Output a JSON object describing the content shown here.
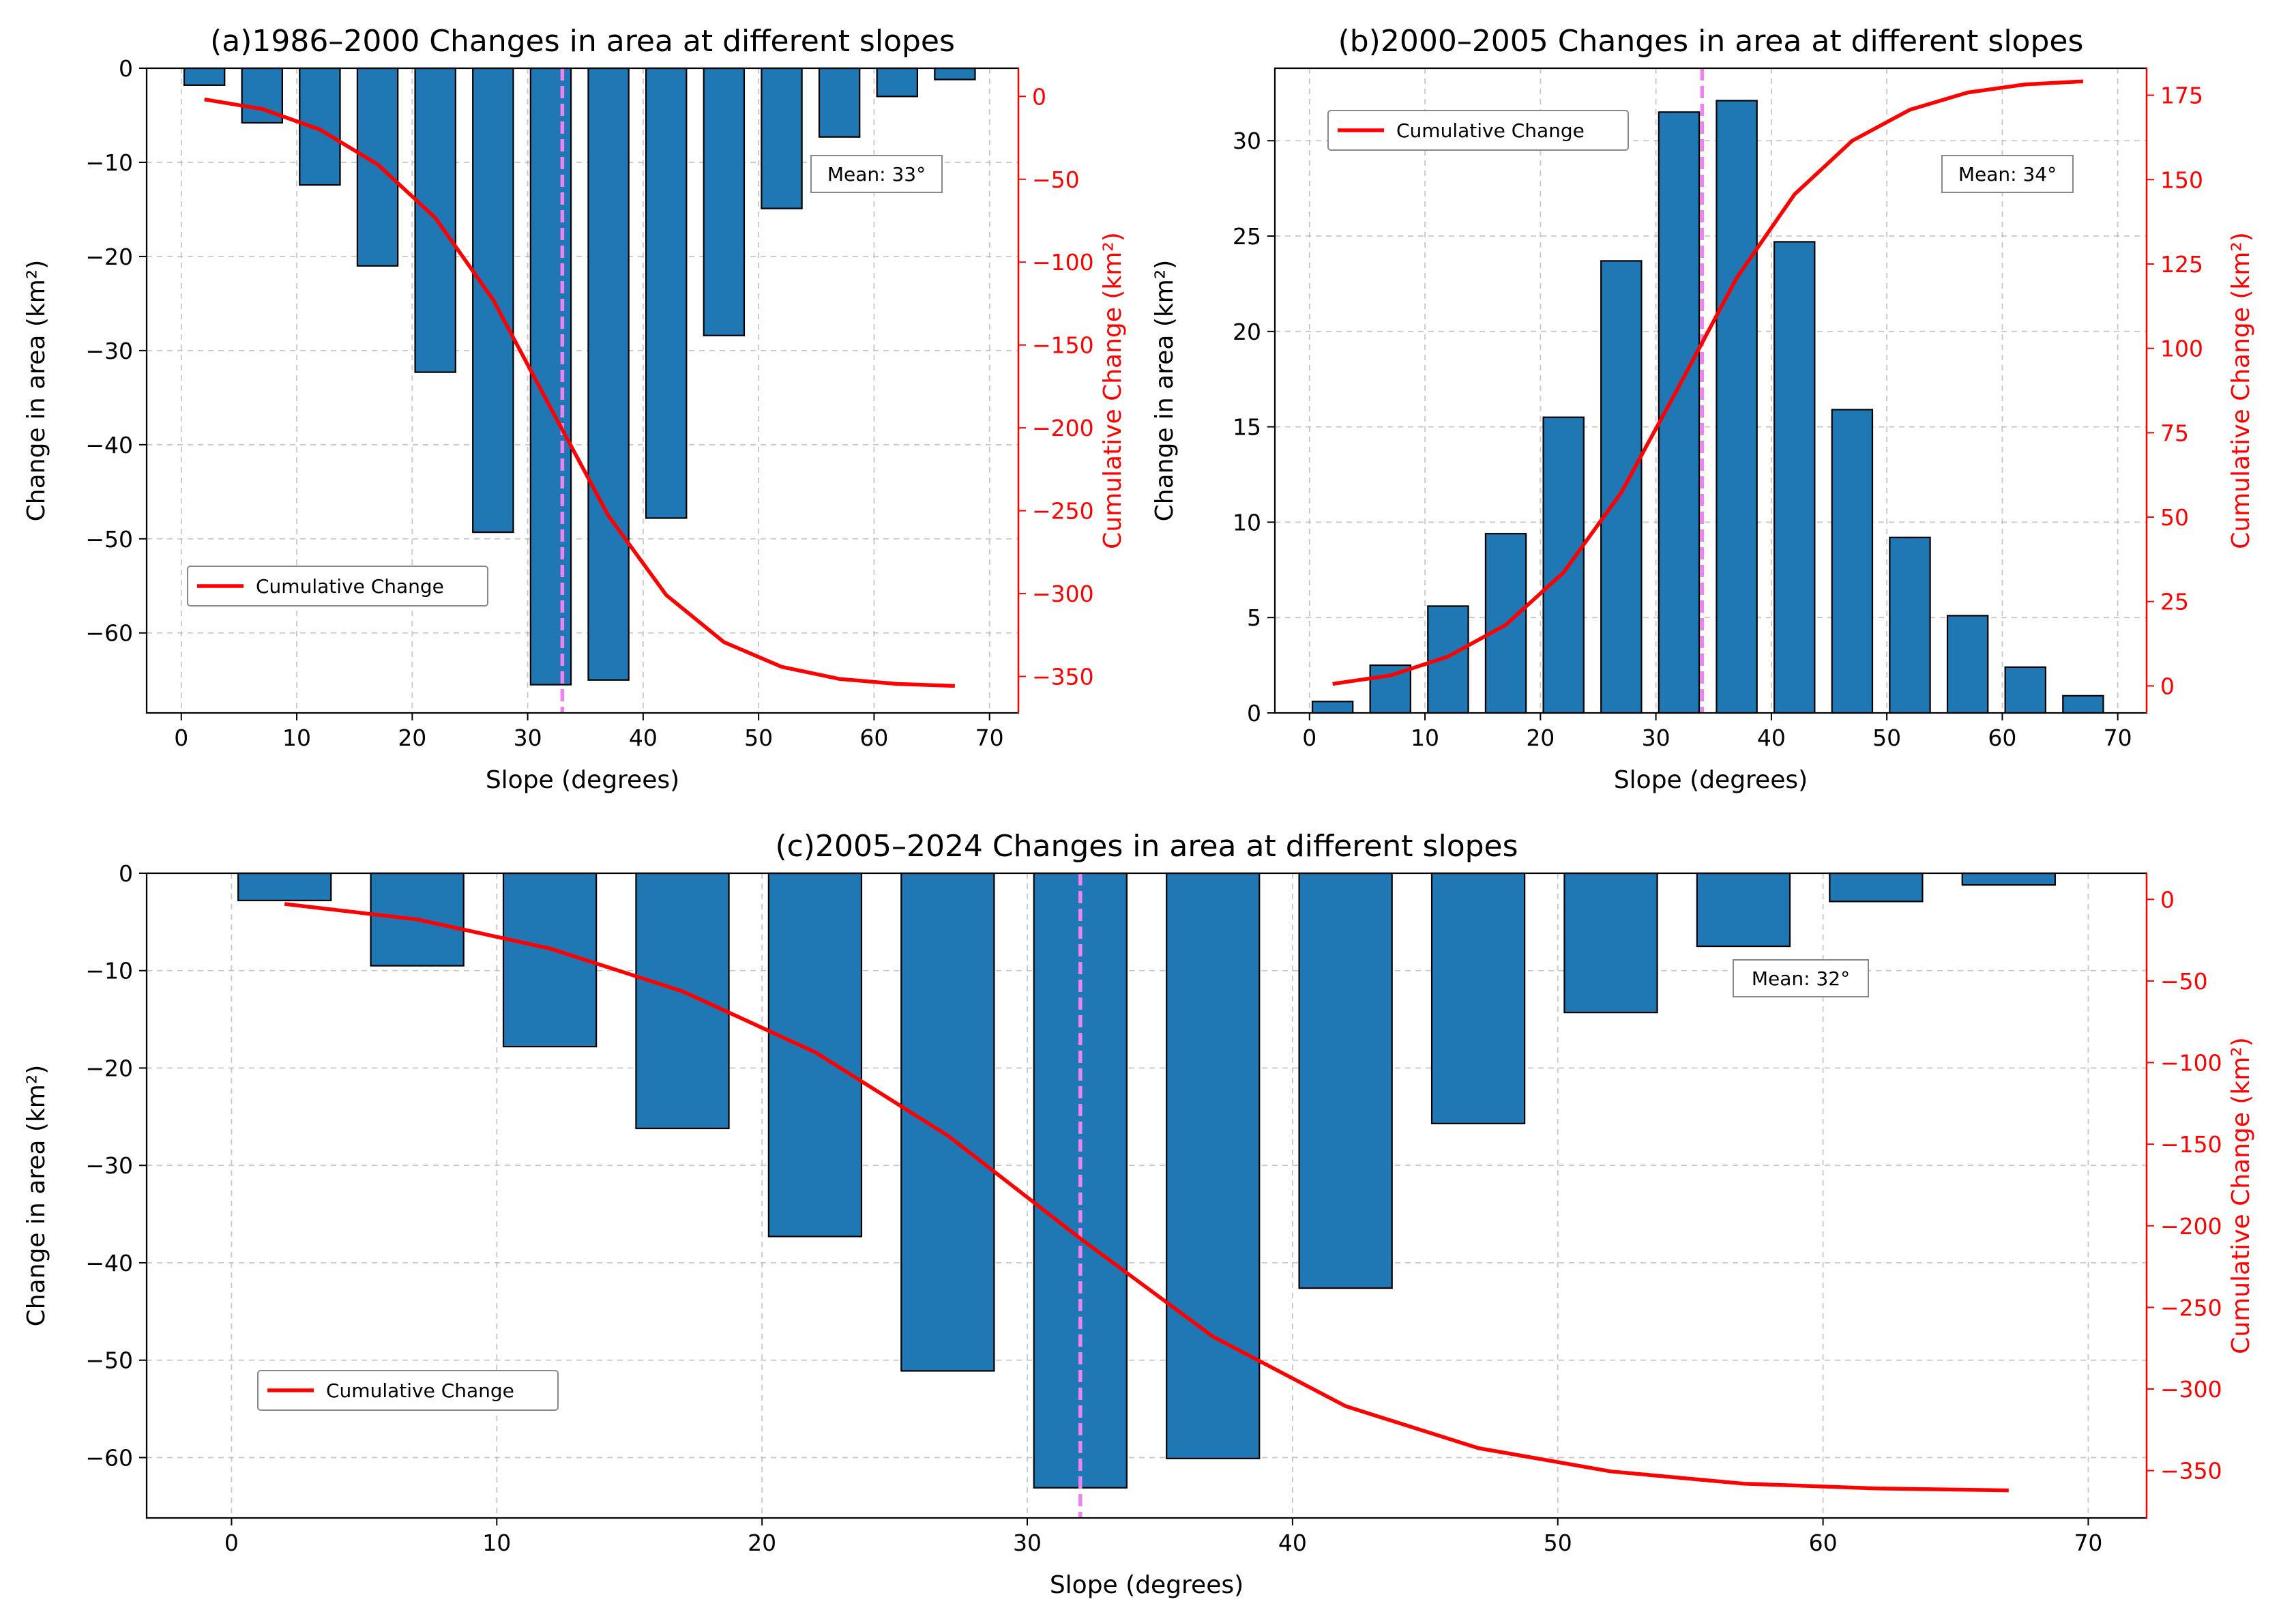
{
  "chart_data": [
    {
      "id": "a",
      "type": "bar",
      "title": "(a)1986–2000 Changes in area at different slopes",
      "xlabel": "Slope (degrees)",
      "ylabel": "Change in area (km²)",
      "y2label": "Cumulative Change (km²)",
      "xlim": [
        -3,
        72.5
      ],
      "ylim": [
        -68.5,
        0
      ],
      "y2lim": [
        -372,
        17
      ],
      "xticks": [
        0,
        10,
        20,
        30,
        40,
        50,
        60,
        70
      ],
      "yticks": [
        0,
        -10,
        -20,
        -30,
        -40,
        -50,
        -60
      ],
      "y2ticks": [
        0,
        -50,
        -100,
        -150,
        -200,
        -250,
        -300,
        -350
      ],
      "bar_width": 3.5,
      "x": [
        2,
        7,
        12,
        17,
        22,
        27,
        32,
        37,
        42,
        47,
        52,
        57,
        62,
        67
      ],
      "values": [
        -1.8,
        -5.8,
        -12.4,
        -21.0,
        -32.3,
        -49.3,
        -65.5,
        -65.0,
        -47.8,
        -28.4,
        -14.9,
        -7.3,
        -3.0,
        -1.2
      ],
      "cumulative": [
        -1.8,
        -7.6,
        -20.0,
        -41.0,
        -73.3,
        -122.6,
        -188.1,
        -253.1,
        -300.9,
        -329.3,
        -344.2,
        -351.5,
        -354.5,
        -355.7
      ],
      "series_names": {
        "bars": "Change in area (km²)",
        "line": "Cumulative Change"
      },
      "mean": 33,
      "mean_label": "Mean: 33°",
      "legend_label": "Cumulative Change",
      "legend_loc": "lower-left"
    },
    {
      "id": "b",
      "type": "bar",
      "title": "(b)2000–2005 Changes in area at different slopes",
      "xlabel": "Slope (degrees)",
      "ylabel": "Change in area (km²)",
      "y2label": "Cumulative Change (km²)",
      "xlim": [
        -3,
        72.5
      ],
      "ylim": [
        0,
        33.8
      ],
      "y2lim": [
        -8,
        183
      ],
      "xticks": [
        0,
        10,
        20,
        30,
        40,
        50,
        60,
        70
      ],
      "yticks": [
        0,
        5,
        10,
        15,
        20,
        25,
        30
      ],
      "y2ticks": [
        0,
        25,
        50,
        75,
        100,
        125,
        150,
        175
      ],
      "bar_width": 3.5,
      "x": [
        2,
        7,
        12,
        17,
        22,
        27,
        32,
        37,
        42,
        47,
        52,
        57,
        62,
        67
      ],
      "values": [
        0.6,
        2.5,
        5.6,
        9.4,
        15.5,
        23.7,
        31.5,
        32.1,
        24.7,
        15.9,
        9.2,
        5.1,
        2.4,
        0.9
      ],
      "cumulative": [
        0.6,
        3.1,
        8.7,
        18.1,
        33.6,
        57.3,
        88.8,
        120.9,
        145.6,
        161.5,
        170.7,
        175.8,
        178.2,
        179.1
      ],
      "series_names": {
        "bars": "Change in area (km²)",
        "line": "Cumulative Change"
      },
      "mean": 34,
      "mean_label": "Mean: 34°",
      "legend_label": "Cumulative Change",
      "legend_loc": "upper-left"
    },
    {
      "id": "c",
      "type": "bar",
      "title": "(c)2005–2024 Changes in area at different slopes",
      "xlabel": "Slope (degrees)",
      "ylabel": "Change in area (km²)",
      "y2label": "Cumulative Change (km²)",
      "xlim": [
        -3.2,
        72.2
      ],
      "ylim": [
        -66.2,
        0
      ],
      "y2lim": [
        -379,
        16
      ],
      "xticks": [
        0,
        10,
        20,
        30,
        40,
        50,
        60,
        70
      ],
      "yticks": [
        0,
        -10,
        -20,
        -30,
        -40,
        -50,
        -60
      ],
      "y2ticks": [
        0,
        -50,
        -100,
        -150,
        -200,
        -250,
        -300,
        -350
      ],
      "bar_width": 3.5,
      "x": [
        2,
        7,
        12,
        17,
        22,
        27,
        32,
        37,
        42,
        47,
        52,
        57,
        62,
        67
      ],
      "values": [
        -2.8,
        -9.5,
        -17.8,
        -26.2,
        -37.3,
        -51.1,
        -63.1,
        -60.1,
        -42.6,
        -25.7,
        -14.3,
        -7.5,
        -2.9,
        -1.2
      ],
      "cumulative": [
        -2.8,
        -12.3,
        -30.1,
        -56.3,
        -93.6,
        -144.7,
        -207.8,
        -267.9,
        -310.5,
        -336.2,
        -350.5,
        -358.0,
        -360.9,
        -362.1
      ],
      "series_names": {
        "bars": "Change in area (km²)",
        "line": "Cumulative Change"
      },
      "mean": 32,
      "mean_label": "Mean: 32°",
      "legend_label": "Cumulative Change",
      "legend_loc": "lower-left"
    }
  ],
  "colors": {
    "bar": "#1f77b4",
    "line": "#ff0000",
    "mean": "#ee82ee"
  }
}
